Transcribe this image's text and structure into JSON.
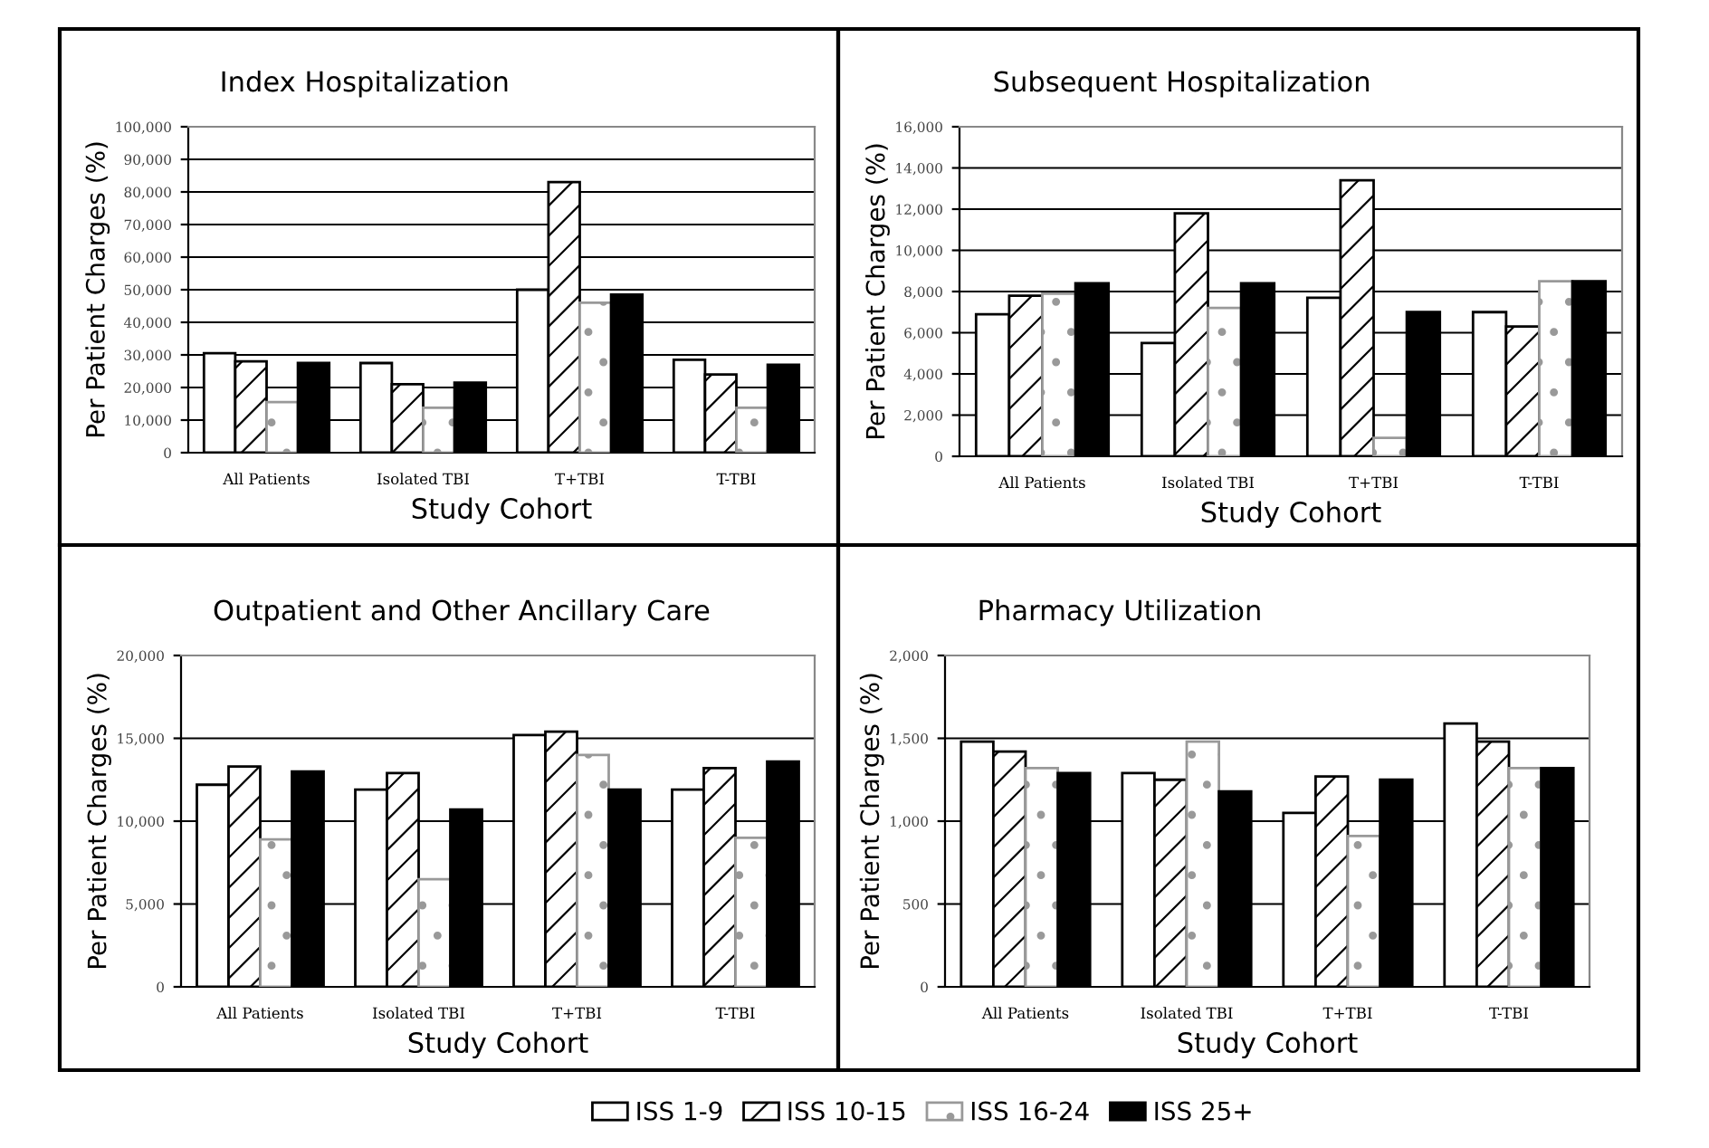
{
  "chart_data": [
    {
      "type": "bar",
      "title": "Index Hospitalization",
      "xlabel": "Study Cohort",
      "ylabel": "Per Patient Charges (%)",
      "categories": [
        "All Patients",
        "Isolated TBI",
        "T+TBI",
        "T-TBI"
      ],
      "series": [
        {
          "name": "ISS 1-9",
          "color": "#ffffff",
          "values": [
            30500,
            27500,
            50000,
            28500
          ]
        },
        {
          "name": "ISS 10-15",
          "color": "#000000",
          "values": [
            28000,
            21000,
            83000,
            24000
          ]
        },
        {
          "name": "ISS 16-24",
          "color": "#999999",
          "values": [
            15500,
            13800,
            46000,
            13800
          ]
        },
        {
          "name": "ISS 25+",
          "color": "#000000",
          "values": [
            27500,
            21500,
            48500,
            27000
          ]
        }
      ],
      "ylim": [
        0,
        100000
      ],
      "yticks": [
        {
          "value": 0,
          "label": "0"
        },
        {
          "value": 10000,
          "label": "10,000"
        },
        {
          "value": 20000,
          "label": "20,000"
        },
        {
          "value": 30000,
          "label": "30,000"
        },
        {
          "value": 40000,
          "label": "40,000"
        },
        {
          "value": 50000,
          "label": "50,000"
        },
        {
          "value": 60000,
          "label": "60,000"
        },
        {
          "value": 70000,
          "label": "70,000"
        },
        {
          "value": 80000,
          "label": "80,000"
        },
        {
          "value": 90000,
          "label": "90,000"
        },
        {
          "value": 100000,
          "label": "100,000"
        }
      ],
      "grid": "y",
      "legend": "bottom"
    },
    {
      "type": "bar",
      "title": "Subsequent Hospitalization",
      "xlabel": "Study Cohort",
      "ylabel": "Per Patient Charges (%)",
      "categories": [
        "All Patients",
        "Isolated TBI",
        "T+TBI",
        "T-TBI"
      ],
      "series": [
        {
          "color": "#ffffff",
          "values": [
            6900,
            5500,
            7700,
            7000
          ]
        },
        {
          "color": "#000000",
          "values": [
            7800,
            11800,
            13400,
            6300
          ]
        },
        {
          "color": "#999999",
          "values": [
            7900,
            7200,
            900,
            8500
          ]
        },
        {
          "color": "#000000",
          "values": [
            8400,
            8400,
            7000,
            8500
          ]
        }
      ],
      "ylim": [
        0,
        16000
      ],
      "yticks": [
        {
          "value": 0,
          "label": "0"
        },
        {
          "value": 2000,
          "label": "2,000"
        },
        {
          "value": 4000,
          "label": "4,000"
        },
        {
          "value": 6000,
          "label": "6,000"
        },
        {
          "value": 8000,
          "label": "8,000"
        },
        {
          "value": 10000,
          "label": "10,000"
        },
        {
          "value": 12000,
          "label": "12,000"
        },
        {
          "value": 14000,
          "label": "14,000"
        },
        {
          "value": 16000,
          "label": "16,000"
        }
      ],
      "grid": "y"
    },
    {
      "type": "bar",
      "title": "Outpatient and Other Ancillary Care",
      "xlabel": "Study Cohort",
      "ylabel": "Per Patient Charges (%)",
      "categories": [
        "All Patients",
        "Isolated TBI",
        "T+TBI",
        "T-TBI"
      ],
      "series": [
        {
          "color": "#ffffff",
          "values": [
            12200,
            11900,
            15200,
            11900
          ]
        },
        {
          "color": "#000000",
          "values": [
            13300,
            12900,
            15400,
            13200
          ]
        },
        {
          "color": "#999999",
          "values": [
            8900,
            6500,
            14000,
            9000
          ]
        },
        {
          "color": "#000000",
          "values": [
            13000,
            10700,
            11900,
            13600
          ]
        }
      ],
      "ylim": [
        0,
        20000
      ],
      "yticks": [
        {
          "value": 0,
          "label": "0"
        },
        {
          "value": 5000,
          "label": "5,000"
        },
        {
          "value": 10000,
          "label": "10,000"
        },
        {
          "value": 15000,
          "label": "15,000"
        },
        {
          "value": 20000,
          "label": "20,000"
        }
      ],
      "grid": "y"
    },
    {
      "type": "bar",
      "title": "Pharmacy Utilization",
      "xlabel": "Study Cohort",
      "ylabel": "Per Patient Charges (%)",
      "categories": [
        "All Patients",
        "Isolated TBI",
        "T+TBI",
        "T-TBI"
      ],
      "series": [
        {
          "color": "#ffffff",
          "values": [
            1480,
            1290,
            1050,
            1590
          ]
        },
        {
          "color": "#000000",
          "values": [
            1420,
            1250,
            1270,
            1480
          ]
        },
        {
          "color": "#999999",
          "values": [
            1320,
            1480,
            910,
            1320
          ]
        },
        {
          "color": "#000000",
          "values": [
            1290,
            1180,
            1250,
            1320
          ]
        }
      ],
      "ylim": [
        0,
        2000
      ],
      "yticks": [
        {
          "value": 0,
          "label": "0"
        },
        {
          "value": 500,
          "label": "500"
        },
        {
          "value": 1000,
          "label": "1,000"
        },
        {
          "value": 1500,
          "label": "1,500"
        },
        {
          "value": 2000,
          "label": "2,000"
        }
      ],
      "grid": "y"
    }
  ]
}
